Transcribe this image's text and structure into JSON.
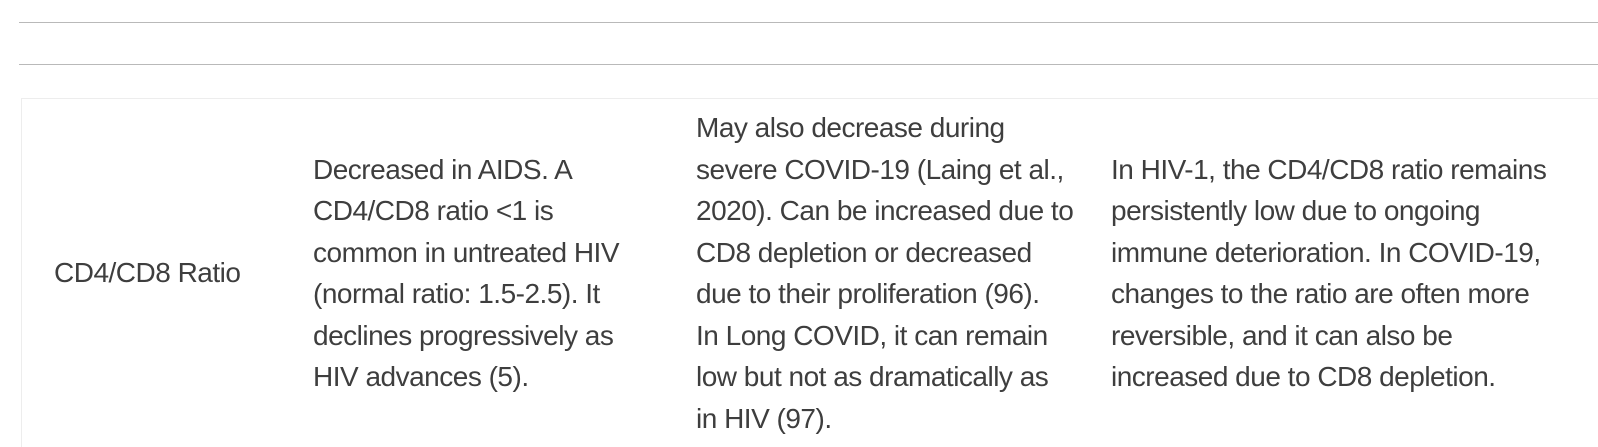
{
  "page": {
    "background_color": "#ffffff",
    "divider_color": "#b9b9b9",
    "table_border_color": "#ededed",
    "text_color": "#3e3e3e"
  },
  "table": {
    "visible_columns": 4,
    "rows": [
      {
        "cells": [
          "CD4/CD8 Ratio",
          "Decreased in AIDS. A\nCD4/CD8 ratio <1 is\ncommon in untreated HIV\n(normal ratio: 1.5-2.5). It\ndeclines progressively as\nHIV advances (5).",
          "May also decrease during\nsevere COVID-19 (Laing et al.,\n2020). Can be increased due to\nCD8 depletion or decreased\ndue to their proliferation (96).\nIn Long COVID, it can remain\nlow but not as dramatically as\nin HIV (97).",
          "In HIV-1, the CD4/CD8 ratio remains\npersistently low due to ongoing\nimmune deterioration. In COVID-19,\nchanges to the ratio are often more\nreversible, and it can also be\nincreased due to CD8 depletion."
        ]
      }
    ]
  }
}
